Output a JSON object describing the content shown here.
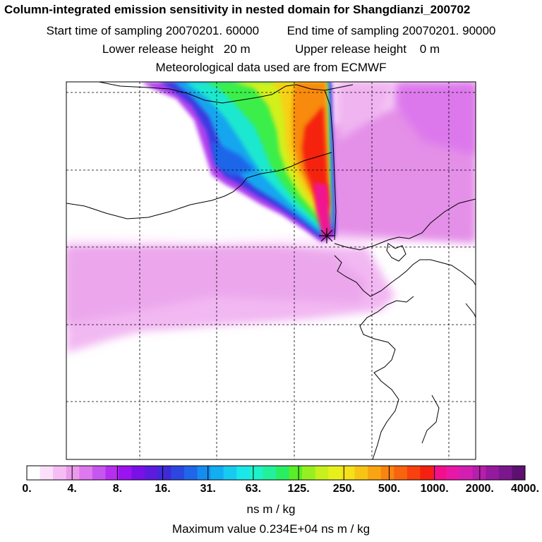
{
  "header": {
    "title": "Column-integrated emission sensitivity in nested domain for Shangdianzi_200702",
    "start_label": "Start time of sampling 20070201. 60000",
    "end_label": "End time of sampling 20070201. 90000",
    "lower_label": "Lower release height   20 m",
    "upper_label": "Upper release height    0 m",
    "met_label": "Meteorological data used are from ECMWF"
  },
  "colorbar": {
    "tick_labels": [
      "0.",
      "4.",
      "8.",
      "16.",
      "31.",
      "63.",
      "125.",
      "250.",
      "500.",
      "1000.",
      "2000.",
      "4000."
    ],
    "colors": [
      "#ffffff",
      "#fbe0fb",
      "#f4bdf4",
      "#eb9aeb",
      "#dd78ee",
      "#c755f0",
      "#b62ff0",
      "#9b13f0",
      "#7a10e8",
      "#5d1be0",
      "#3f2ad8",
      "#2c47e0",
      "#1f66ea",
      "#168cf0",
      "#13adf2",
      "#16cbf0",
      "#1ae8e8",
      "#1ef2c8",
      "#22f09a",
      "#2aee62",
      "#5aee26",
      "#96f020",
      "#c8f01c",
      "#e8f01c",
      "#f5e01a",
      "#f7c416",
      "#f8a512",
      "#f88510",
      "#f8640e",
      "#f7410e",
      "#f5200f",
      "#f2108a",
      "#e818a6",
      "#d21fb2",
      "#b51fac",
      "#961a9e",
      "#7b178c",
      "#5e1070"
    ],
    "units": "ns m / kg"
  },
  "max_value": "Maximum value  0.234E+04 ns m / kg",
  "receptor": {
    "name": "Shangdianzi"
  },
  "icons": [
    "receptor-star-icon"
  ]
}
